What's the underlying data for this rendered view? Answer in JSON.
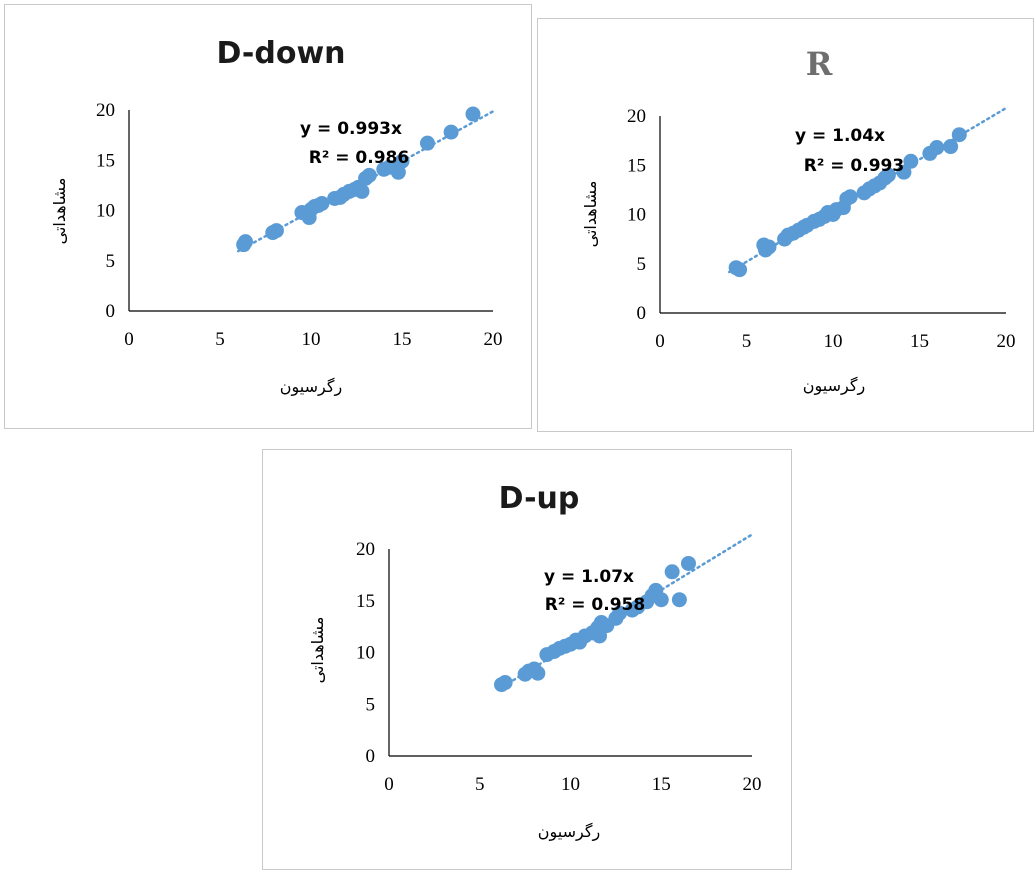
{
  "colors": {
    "point": "#5b9bd5",
    "trend": "#5b9bd5",
    "axis": "#000000"
  },
  "chart_data": [
    {
      "type": "scatter",
      "title": "D-down",
      "xlabel": "رگرسیون",
      "ylabel": "مشاهداتی",
      "xlim": [
        0,
        20
      ],
      "ylim": [
        0,
        20
      ],
      "xticks": [
        "0",
        "5",
        "10",
        "15",
        "20"
      ],
      "yticks": [
        "0",
        "5",
        "10",
        "15",
        "20"
      ],
      "trendline": {
        "slope": 0.993,
        "equation": "y = 0.993x",
        "r2": "R² = 0.986"
      },
      "legend": "none",
      "grid": false,
      "points": [
        [
          6.3,
          6.6
        ],
        [
          6.4,
          6.9
        ],
        [
          7.9,
          7.8
        ],
        [
          8.1,
          8.0
        ],
        [
          9.5,
          9.8
        ],
        [
          9.9,
          9.3
        ],
        [
          10.0,
          10.1
        ],
        [
          10.2,
          10.4
        ],
        [
          10.4,
          10.5
        ],
        [
          10.6,
          10.7
        ],
        [
          11.3,
          11.2
        ],
        [
          11.6,
          11.3
        ],
        [
          11.8,
          11.6
        ],
        [
          12.1,
          11.9
        ],
        [
          12.4,
          12.1
        ],
        [
          12.6,
          12.3
        ],
        [
          12.8,
          11.9
        ],
        [
          13.0,
          13.2
        ],
        [
          13.2,
          13.5
        ],
        [
          14.0,
          14.1
        ],
        [
          14.3,
          14.3
        ],
        [
          14.8,
          13.8
        ],
        [
          15.0,
          14.9
        ],
        [
          16.4,
          16.7
        ],
        [
          17.7,
          17.8
        ],
        [
          18.9,
          19.6
        ]
      ]
    },
    {
      "type": "scatter",
      "title": "R",
      "xlabel": "رگرسیون",
      "ylabel": "مشاهداتی",
      "xlim": [
        0,
        20
      ],
      "ylim": [
        0,
        20
      ],
      "xticks": [
        "0",
        "5",
        "10",
        "15",
        "20"
      ],
      "yticks": [
        "0",
        "5",
        "10",
        "15",
        "20"
      ],
      "trendline": {
        "slope": 1.04,
        "equation": "y = 1.04x",
        "r2": "R² = 0.993"
      },
      "legend": "none",
      "grid": false,
      "points": [
        [
          4.4,
          4.6
        ],
        [
          4.6,
          4.4
        ],
        [
          6.0,
          6.9
        ],
        [
          6.1,
          6.4
        ],
        [
          6.3,
          6.7
        ],
        [
          7.2,
          7.5
        ],
        [
          7.4,
          7.9
        ],
        [
          7.7,
          8.1
        ],
        [
          8.0,
          8.4
        ],
        [
          8.3,
          8.7
        ],
        [
          8.5,
          8.9
        ],
        [
          8.9,
          9.3
        ],
        [
          9.2,
          9.5
        ],
        [
          9.5,
          9.8
        ],
        [
          9.7,
          10.2
        ],
        [
          10.0,
          10.0
        ],
        [
          10.2,
          10.5
        ],
        [
          10.6,
          10.7
        ],
        [
          10.8,
          11.6
        ],
        [
          11.0,
          11.8
        ],
        [
          11.8,
          12.2
        ],
        [
          12.1,
          12.6
        ],
        [
          12.4,
          12.9
        ],
        [
          12.7,
          13.2
        ],
        [
          13.0,
          13.7
        ],
        [
          13.2,
          14.0
        ],
        [
          14.1,
          14.3
        ],
        [
          14.5,
          15.4
        ],
        [
          15.6,
          16.2
        ],
        [
          16.0,
          16.8
        ],
        [
          16.8,
          16.9
        ],
        [
          17.3,
          18.1
        ]
      ]
    },
    {
      "type": "scatter",
      "title": "D-up",
      "xlabel": "رگرسیون",
      "ylabel": "مشاهداتی",
      "xlim": [
        0,
        20
      ],
      "ylim": [
        0,
        20
      ],
      "xticks": [
        "0",
        "5",
        "10",
        "15",
        "20"
      ],
      "yticks": [
        "0",
        "5",
        "10",
        "15",
        "20"
      ],
      "trendline": {
        "slope": 1.07,
        "equation": "y = 1.07x",
        "r2": "R² = 0.958"
      },
      "legend": "none",
      "grid": false,
      "points": [
        [
          6.2,
          6.9
        ],
        [
          6.4,
          7.1
        ],
        [
          7.5,
          7.9
        ],
        [
          7.7,
          8.2
        ],
        [
          8.0,
          8.4
        ],
        [
          8.2,
          8.0
        ],
        [
          8.7,
          9.8
        ],
        [
          9.1,
          10.1
        ],
        [
          9.4,
          10.4
        ],
        [
          9.7,
          10.6
        ],
        [
          10.0,
          10.8
        ],
        [
          10.3,
          11.2
        ],
        [
          10.5,
          11.0
        ],
        [
          10.8,
          11.6
        ],
        [
          11.2,
          11.9
        ],
        [
          11.5,
          12.4
        ],
        [
          11.7,
          12.9
        ],
        [
          11.6,
          11.6
        ],
        [
          12.0,
          12.6
        ],
        [
          12.5,
          13.3
        ],
        [
          12.7,
          13.8
        ],
        [
          13.4,
          14.1
        ],
        [
          13.7,
          14.4
        ],
        [
          14.2,
          14.9
        ],
        [
          14.5,
          15.5
        ],
        [
          14.7,
          16.0
        ],
        [
          15.0,
          15.1
        ],
        [
          15.6,
          17.8
        ],
        [
          16.0,
          15.1
        ],
        [
          16.5,
          18.6
        ]
      ]
    }
  ]
}
